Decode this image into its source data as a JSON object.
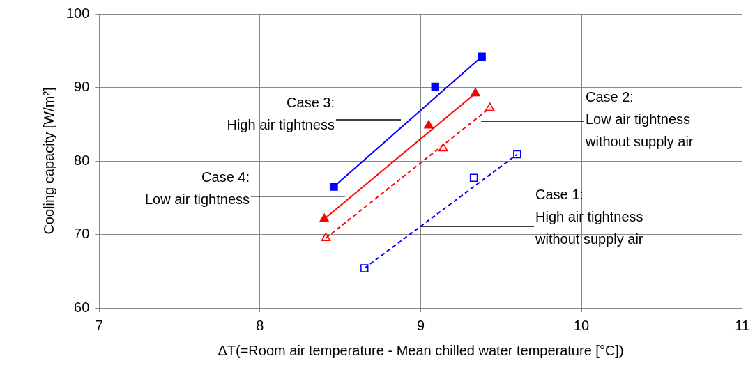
{
  "chart_data": {
    "type": "scatter",
    "xlabel": "ΔT(=Room air temperature - Mean chilled water temperature [°C])",
    "ylabel": "Cooling capacity [W/m²]",
    "xlim": [
      7,
      11
    ],
    "xticks": [
      7,
      8,
      9,
      10,
      11
    ],
    "ylim": [
      60,
      100
    ],
    "yticks": [
      60,
      70,
      80,
      90,
      100
    ],
    "grid": true,
    "legend": false,
    "series": [
      {
        "type": "line",
        "color": "#0000ff",
        "line_style": "solid",
        "marker": "none",
        "x": [
          8.46,
          9.38
        ],
        "values": [
          76.5,
          94.2
        ]
      },
      {
        "type": "line",
        "color": "#ff0000",
        "line_style": "solid",
        "marker": "none",
        "x": [
          8.4,
          9.34
        ],
        "values": [
          72.1,
          89.2
        ]
      },
      {
        "type": "line",
        "color": "#ff0000",
        "line_style": "dashed",
        "marker": "none",
        "x": [
          8.41,
          9.43
        ],
        "values": [
          69.5,
          87.2
        ]
      },
      {
        "type": "line",
        "color": "#0000ff",
        "line_style": "dashed",
        "marker": "none",
        "x": [
          8.65,
          9.6
        ],
        "values": [
          65.4,
          80.9
        ]
      },
      {
        "type": "scatter",
        "color": "#0000ff",
        "marker": "square",
        "line_style": "solid",
        "x": [
          8.46,
          9.09,
          9.38
        ],
        "values": [
          76.5,
          90.1,
          94.2
        ]
      },
      {
        "type": "scatter",
        "color": "#ff0000",
        "marker": "triangle",
        "line_style": "solid",
        "x": [
          8.4,
          9.05,
          9.34
        ],
        "values": [
          72.1,
          84.8,
          89.2
        ]
      },
      {
        "type": "scatter",
        "color": "#ff0000",
        "marker": "triangle",
        "line_style": "dashed",
        "x": [
          8.41,
          9.14,
          9.43
        ],
        "values": [
          69.5,
          81.7,
          87.2
        ]
      },
      {
        "type": "scatter",
        "color": "#0000ff",
        "marker": "square",
        "line_style": "dashed",
        "x": [
          8.65,
          9.33,
          9.6
        ],
        "values": [
          65.4,
          77.7,
          80.9
        ]
      }
    ],
    "annotations": [
      "Case 3:\nHigh air tightness",
      "Case 2:\nLow air tightness\nwithout supply air",
      {
        "text": "Case 4:\nLow air tightness",
        "x": 8.53,
        "y": 75.2
      },
      {
        "text": "Case 1:\nHigh air tightness\nwithout supply air",
        "x": 9.0,
        "y": 71.1
      }
    ]
  }
}
